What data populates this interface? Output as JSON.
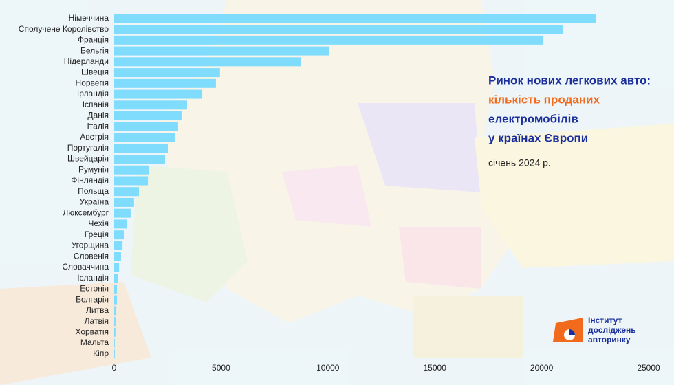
{
  "chart_data": {
    "type": "hbar",
    "title_lines": [
      "Ринок нових легкових авто:",
      "кількість проданих",
      "електромобілів",
      "у країнах Європи"
    ],
    "title_colors": [
      "#1a2f9c",
      "#f26a1b",
      "#1a2f9c",
      "#1a2f9c"
    ],
    "subtitle": "січень 2024 р.",
    "logo": [
      "Інститут",
      "досліджень",
      "авторинку"
    ],
    "categories": [
      "Німеччина",
      "Сполучене Королівство",
      "Франція",
      "Бельгія",
      "Нідерланди",
      "Швеція",
      "Норвегія",
      "Ірландія",
      "Іспанія",
      "Данія",
      "Італія",
      "Австрія",
      "Португалія",
      "Швейцарія",
      "Румунія",
      "Фінляндія",
      "Польща",
      "Україна",
      "Люксембург",
      "Чехія",
      "Греція",
      "Угорщина",
      "Словенія",
      "Словаччина",
      "Ісландія",
      "Естонія",
      "Болгарія",
      "Литва",
      "Латвія",
      "Хорватія",
      "Мальта",
      "Кіпр"
    ],
    "values": [
      22550,
      21010,
      20080,
      10070,
      8750,
      4950,
      4760,
      4120,
      3410,
      3150,
      2990,
      2830,
      2510,
      2380,
      1640,
      1580,
      1160,
      930,
      770,
      580,
      450,
      390,
      320,
      230,
      160,
      130,
      130,
      100,
      60,
      60,
      30,
      30
    ],
    "color": "#80dcfc",
    "xlim": [
      0,
      25000
    ],
    "xticks": [
      0,
      5000,
      10000,
      15000,
      20000,
      25000
    ],
    "grid": false
  }
}
